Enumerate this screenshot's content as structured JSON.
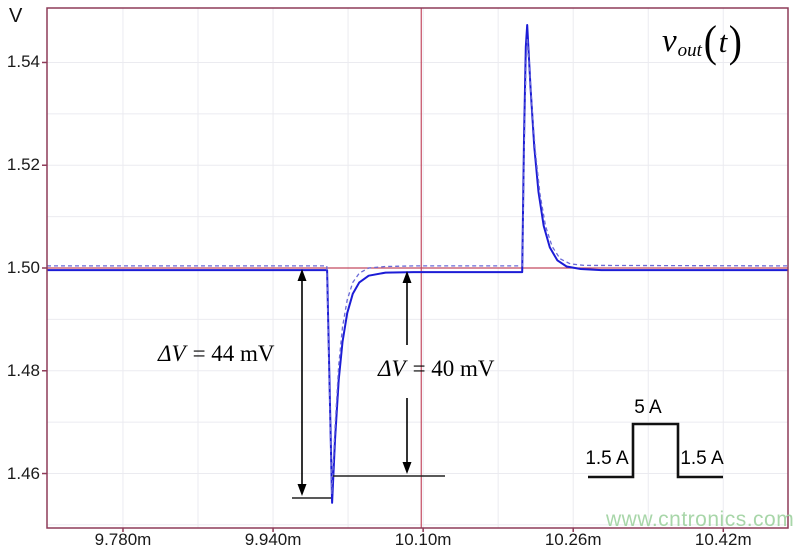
{
  "page": {
    "watermark": "www.cntronics.com"
  },
  "colors": {
    "frame": "#8e3b58",
    "cursor": "#c44a60",
    "trace_solid": "#1c1cd6",
    "trace_dashed": "#6a6ad8",
    "grid": "#ebebf0",
    "watermark_green": "#9fd2a0"
  },
  "axes": {
    "y_unit_label": "V",
    "x_tick_labels": [
      "9.780m",
      "9.940m",
      "10.10m",
      "10.26m",
      "10.42m"
    ],
    "y_tick_labels": [
      "1.54",
      "1.52",
      "1.50",
      "1.48",
      "1.46"
    ]
  },
  "trace_title": {
    "name": "v",
    "subscript": "out",
    "lparen": "(",
    "argument": "t",
    "rparen": ")"
  },
  "annotations": {
    "delta_v_1": {
      "delta": "Δ",
      "var": "V",
      "rest": "= 44 mV"
    },
    "delta_v_2": {
      "delta": "Δ",
      "var": "V",
      "rest": "= 40 mV"
    }
  },
  "inset": {
    "left_label": "1.5 A",
    "top_label": "5 A",
    "right_label": "1.5 A"
  },
  "chart_data": {
    "type": "line",
    "title": "vout(t)",
    "ylabel": "V",
    "x_tick_values_ms": [
      9.78,
      9.94,
      10.1,
      10.26,
      10.42
    ],
    "x_minor_ms": [
      9.86,
      10.02,
      10.18,
      10.34
    ],
    "y_tick_values_V": [
      1.54,
      1.52,
      1.5,
      1.48,
      1.46
    ],
    "y_minor_V": [
      1.53,
      1.51,
      1.49,
      1.47,
      1.45
    ],
    "x_range_ms": [
      9.699,
      10.489
    ],
    "y_range_V": [
      1.4494,
      1.5506
    ],
    "grid": true,
    "legend": false,
    "cursor": {
      "x_ms": 10.098,
      "y_V": 1.5
    },
    "annotations": [
      {
        "label": "ΔV = 44 mV",
        "from_V": 1.5,
        "to_V": 1.456
      },
      {
        "label": "ΔV = 40 mV",
        "from_V": 1.5,
        "to_V": 1.46
      }
    ],
    "load_step": {
      "values_A": [
        1.5,
        5,
        1.5
      ],
      "labels": [
        "1.5 A",
        "5 A",
        "1.5 A"
      ]
    },
    "series": [
      {
        "name": "trace-solid",
        "style": "solid",
        "points": [
          [
            9.699,
            1.4996
          ],
          [
            9.9976,
            1.4996
          ],
          [
            10.0029,
            1.4543
          ],
          [
            10.006,
            1.4665
          ],
          [
            10.01,
            1.4782
          ],
          [
            10.014,
            1.4856
          ],
          [
            10.019,
            1.4912
          ],
          [
            10.025,
            1.495
          ],
          [
            10.032,
            1.4972
          ],
          [
            10.042,
            1.4985
          ],
          [
            10.06,
            1.4991
          ],
          [
            10.09,
            1.4992
          ],
          [
            10.2056,
            1.4992
          ],
          [
            10.2075,
            1.525
          ],
          [
            10.2095,
            1.543
          ],
          [
            10.211,
            1.5473
          ],
          [
            10.2145,
            1.5352
          ],
          [
            10.2185,
            1.5235
          ],
          [
            10.223,
            1.5148
          ],
          [
            10.2285,
            1.5082
          ],
          [
            10.235,
            1.504
          ],
          [
            10.243,
            1.5015
          ],
          [
            10.253,
            1.5003
          ],
          [
            10.268,
            1.4998
          ],
          [
            10.29,
            1.4996
          ],
          [
            10.489,
            1.4996
          ]
        ]
      },
      {
        "name": "trace-dashed",
        "style": "dashed",
        "points": [
          [
            9.699,
            1.5004
          ],
          [
            9.9973,
            1.5004
          ],
          [
            10.0026,
            1.456
          ],
          [
            10.006,
            1.469
          ],
          [
            10.01,
            1.481
          ],
          [
            10.014,
            1.4885
          ],
          [
            10.019,
            1.4938
          ],
          [
            10.025,
            1.4972
          ],
          [
            10.032,
            1.499
          ],
          [
            10.042,
            1.5
          ],
          [
            10.06,
            1.5003
          ],
          [
            10.09,
            1.5004
          ],
          [
            10.2058,
            1.5004
          ],
          [
            10.2078,
            1.523
          ],
          [
            10.2098,
            1.54
          ],
          [
            10.2112,
            1.5448
          ],
          [
            10.215,
            1.534
          ],
          [
            10.2195,
            1.523
          ],
          [
            10.2245,
            1.5145
          ],
          [
            10.2305,
            1.5082
          ],
          [
            10.2375,
            1.5042
          ],
          [
            10.246,
            1.5018
          ],
          [
            10.257,
            1.5008
          ],
          [
            10.272,
            1.5005
          ],
          [
            10.489,
            1.5004
          ]
        ]
      }
    ]
  }
}
